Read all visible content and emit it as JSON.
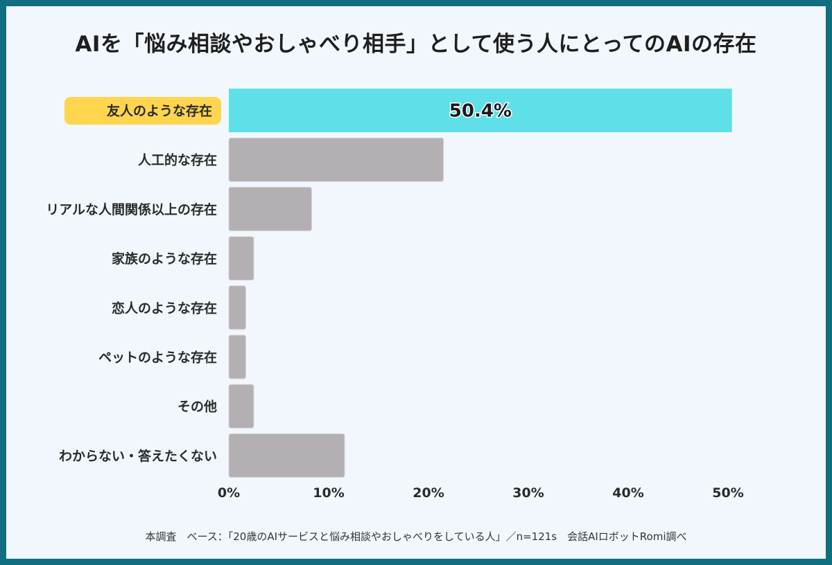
{
  "chart_data": {
    "type": "bar",
    "orientation": "horizontal",
    "title": "AIを「悩み相談やおしゃべり相手」として使う人にとってのAIの存在",
    "categories": [
      "友人のような存在",
      "人工的な存在",
      "リアルな人間関係以上の存在",
      "家族のような存在",
      "恋人のような存在",
      "ペットのような存在",
      "その他",
      "わからない・答えたくない"
    ],
    "values": [
      50.4,
      21.5,
      8.3,
      2.5,
      1.7,
      1.7,
      2.5,
      11.6
    ],
    "highlight_index": 0,
    "data_labels": [
      "50.4%",
      "",
      "",
      "",
      "",
      "",
      "",
      ""
    ],
    "xlim": [
      0,
      50
    ],
    "xticks": [
      "0%",
      "10%",
      "20%",
      "30%",
      "40%",
      "50%"
    ],
    "colors": {
      "highlight": "#5fe0e8",
      "default": "#b3afb3",
      "label_highlight_bg": "#ffd54f"
    },
    "grid": false,
    "footnote": "本調査　ベース：「20歳のAIサービスと悩み相談やおしゃべりをしている人」／n=121s　会話AIロボットRomi調べ"
  }
}
